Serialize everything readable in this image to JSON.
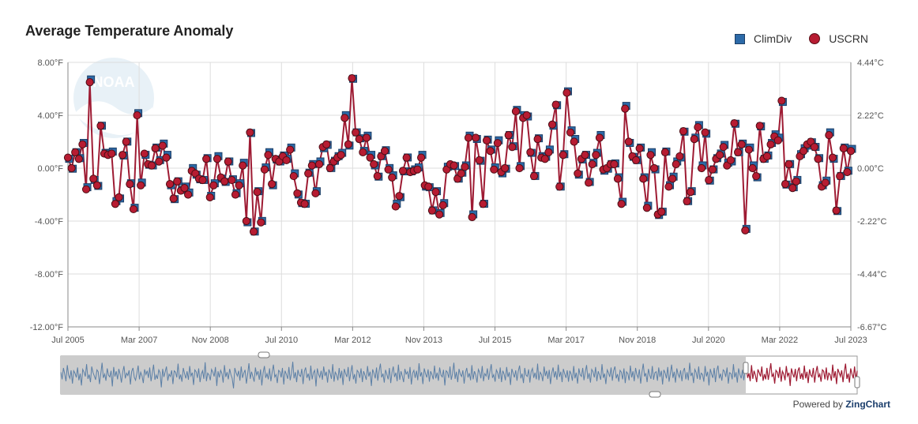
{
  "title": "Average Temperature Anomaly",
  "legend": {
    "climdiv": "ClimDiv",
    "uscrn": "USCRN"
  },
  "colors": {
    "climdiv": "#2c6aa8",
    "uscrn": "#b71c32",
    "line": "#9e1b33",
    "preview": "#5b7fa6"
  },
  "powered": {
    "prefix": "Powered by",
    "brand": "ZingChart"
  },
  "watermark": "NOAA",
  "chart_data": {
    "type": "line",
    "title": "Average Temperature Anomaly",
    "x_start": "2005-07",
    "x_end": "2023-07",
    "x_ticks": [
      "Jul 2005",
      "Mar 2007",
      "Nov 2008",
      "Jul 2010",
      "Mar 2012",
      "Nov 2013",
      "Jul 2015",
      "Mar 2017",
      "Nov 2018",
      "Jul 2020",
      "Mar 2022",
      "Jul 2023"
    ],
    "y_left_ticks": [
      "8.00°F",
      "4.00°F",
      "0.00°F",
      "-4.00°F",
      "-8.00°F",
      "-12.00°F"
    ],
    "y_right_ticks": [
      "4.44°C",
      "2.22°C",
      "0.00°C",
      "-2.22°C",
      "-4.44°C",
      "-6.67°C"
    ],
    "ylim": [
      -12,
      8
    ],
    "grid": true,
    "legend_position": "top-right",
    "series": [
      {
        "name": "ClimDiv",
        "marker": "square"
      },
      {
        "name": "USCRN",
        "marker": "circle"
      }
    ],
    "uscrn": [
      0.8,
      0.0,
      1.2,
      0.7,
      1.8,
      -1.6,
      6.5,
      -0.8,
      -1.3,
      3.2,
      1.1,
      1.0,
      1.1,
      -2.7,
      -2.2,
      1.0,
      2.0,
      -1.2,
      -3.1,
      4.0,
      -1.3,
      1.1,
      0.3,
      0.2,
      1.5,
      0.5,
      1.7,
      0.8,
      -1.2,
      -2.3,
      -1.0,
      -1.7,
      -1.5,
      -2.0,
      -0.2,
      -0.4,
      -0.8,
      -0.9,
      0.7,
      -2.2,
      -1.3,
      0.7,
      -0.7,
      -1.0,
      0.5,
      -0.9,
      -2.0,
      -1.3,
      0.2,
      -4.0,
      2.7,
      -4.8,
      -1.8,
      -4.1,
      -0.1,
      1.0,
      -1.2,
      0.7,
      0.5,
      0.9,
      0.6,
      1.4,
      -0.6,
      -1.9,
      -2.6,
      -2.7,
      -0.4,
      0.2,
      -1.9,
      0.3,
      1.6,
      1.8,
      0.0,
      0.5,
      0.8,
      1.0,
      3.8,
      1.8,
      6.8,
      2.7,
      2.2,
      1.2,
      2.3,
      0.8,
      0.3,
      -0.6,
      0.9,
      1.3,
      -0.1,
      -0.7,
      -2.9,
      -2.1,
      -0.2,
      0.8,
      -0.3,
      -0.2,
      -0.1,
      0.8,
      -1.3,
      -1.4,
      -3.2,
      -1.8,
      -3.5,
      -2.8,
      -0.1,
      0.3,
      0.2,
      -0.8,
      -0.4,
      0.1,
      2.3,
      -3.7,
      2.3,
      0.6,
      -2.7,
      2.1,
      1.3,
      -0.1,
      1.9,
      -0.3,
      0.0,
      2.5,
      1.6,
      4.3,
      0.0,
      3.8,
      4.0,
      1.2,
      -0.6,
      2.2,
      0.8,
      0.7,
      1.2,
      3.3,
      4.8,
      -1.4,
      1.0,
      5.7,
      2.7,
      2.0,
      -0.4,
      0.7,
      1.0,
      -1.1,
      0.3,
      1.0,
      2.3,
      -0.1,
      0.0,
      0.3,
      0.3,
      -0.8,
      -2.7,
      4.5,
      2.0,
      0.9,
      0.6,
      1.5,
      -0.8,
      -3.0,
      1.0,
      0.0,
      -3.5,
      -3.3,
      1.2,
      -1.4,
      -0.8,
      0.3,
      0.9,
      2.8,
      -2.5,
      -1.8,
      2.2,
      3.1,
      0.0,
      2.7,
      -0.9,
      -0.1,
      0.7,
      1.0,
      1.6,
      0.2,
      0.6,
      3.4,
      1.2,
      1.8,
      -4.7,
      1.4,
      0.0,
      -0.6,
      3.2,
      0.7,
      0.9,
      1.8,
      2.4,
      2.1,
      5.1,
      -1.2,
      0.3,
      -1.5,
      -1.0,
      0.9,
      1.3,
      1.8,
      2.0,
      1.6,
      0.7,
      -1.4,
      -1.1,
      2.5,
      0.8,
      -3.2,
      -0.6,
      1.5,
      -0.3,
      1.3
    ]
  },
  "preview": {
    "values": [
      0.6,
      -0.9,
      1.5,
      0.2,
      -1.3,
      2.1,
      0.0,
      -0.7,
      1.0,
      -1.8,
      0.9,
      0.4,
      -0.5,
      1.6,
      -1.1,
      0.3,
      -2.2,
      1.2,
      0.6,
      -0.3,
      2.3,
      -0.8,
      0.1,
      -1.5,
      1.8,
      0.5,
      -0.2,
      -1.0,
      1.1,
      0.7,
      -1.9,
      0.3,
      2.6,
      -0.6,
      0.2,
      -1.2,
      1.4,
      0.0,
      -0.4,
      0.9,
      -2.4,
      1.7,
      -0.3,
      0.8,
      -0.9,
      1.3,
      0.2,
      -1.6,
      0.6,
      1.9,
      -0.7,
      0.4,
      -0.1,
      1.0,
      -2.0,
      0.8,
      1.5,
      -0.5,
      -1.1,
      0.3,
      2.0,
      -0.9,
      0.6,
      -0.2,
      -1.7,
      1.2,
      0.1,
      0.9,
      -0.6,
      1.6,
      -1.3,
      0.4,
      2.2,
      -1.0,
      0.0,
      -0.8,
      1.1,
      0.5,
      -2.6,
      1.3,
      -0.4,
      0.7,
      1.8,
      -1.2,
      0.2,
      -0.3,
      1.0,
      -1.9,
      0.9,
      0.6,
      -0.5,
      2.4,
      -0.9,
      0.1,
      -1.4,
      1.5,
      0.3,
      -0.7,
      0.8,
      -1.0,
      1.9,
      -0.2,
      0.5,
      -2.1,
      1.1,
      0.7,
      -0.6,
      1.4,
      -1.5,
      0.2,
      0.9,
      -0.8,
      2.7,
      -1.3,
      0.4,
      0.0,
      -1.1,
      1.2,
      0.6,
      -0.3,
      1.7,
      -2.3,
      0.8,
      -0.5,
      1.0,
      0.3,
      -1.6,
      2.1,
      -0.4,
      0.6,
      -0.9,
      1.3,
      0.1,
      -0.7,
      -2.8,
      1.5,
      0.5,
      -0.2,
      0.9,
      -1.2,
      1.8,
      -0.6,
      0.4,
      1.1,
      -1.8,
      0.2,
      2.5,
      -0.8,
      0.7,
      -0.3,
      -1.4,
      1.6,
      0.0,
      0.8,
      -1.0,
      1.2,
      -2.2,
      0.5,
      1.9,
      -0.6,
      0.3,
      -0.9,
      1.4,
      -1.3,
      0.6,
      2.2,
      -0.4,
      0.1,
      -1.7,
      1.0,
      0.7,
      -0.5,
      1.5,
      -2.0,
      0.9,
      0.2,
      -0.8,
      1.7,
      -1.1,
      0.4,
      2.8,
      -0.7,
      0.6,
      -1.5,
      1.1,
      0.0,
      -0.3,
      1.3,
      -1.9,
      0.8,
      1.6,
      -0.6,
      0.3,
      -1.2,
      2.0,
      -0.9,
      0.5,
      1.0,
      -2.4,
      1.4,
      0.2,
      -0.5,
      0.9,
      -1.0,
      1.8,
      -0.2,
      0.7,
      -1.6,
      1.2,
      0.4,
      -0.8,
      2.3,
      -1.4,
      0.6,
      0.1,
      -1.1,
      1.5,
      -0.7,
      0.9,
      -2.1,
      1.3,
      0.3,
      -0.4,
      1.7,
      -1.3,
      0.5,
      2.1,
      -0.9,
      0.2,
      -1.8,
      1.0,
      0.6,
      -0.6,
      1.4,
      -1.5,
      0.8,
      0.0,
      -1.0,
      1.9,
      -0.3,
      0.7,
      -2.3,
      1.2,
      0.4,
      -0.7,
      1.6,
      -1.2,
      0.9,
      2.4,
      -0.5,
      0.3,
      -1.6,
      1.1,
      0.1,
      -0.9,
      1.5,
      -1.7,
      0.6,
      1.8,
      -0.4,
      0.5,
      -1.3,
      2.2,
      -1.0,
      0.8,
      -0.2,
      -1.5,
      1.3,
      0.2,
      0.7,
      -0.8,
      1.7,
      -2.0,
      0.4,
      1.0,
      -0.6,
      0.9,
      -1.1,
      2.5,
      -0.3,
      0.6,
      -1.9,
      1.4,
      0.3,
      -0.5,
      1.2,
      -1.4,
      0.8,
      0.1,
      -0.9,
      2.0,
      -0.7,
      0.5,
      -1.2,
      1.6,
      0.0,
      -0.4,
      1.1,
      -2.2,
      0.9,
      0.6,
      -0.6,
      1.8,
      -1.0,
      0.3,
      2.6,
      -0.8,
      0.7,
      -1.5,
      1.3,
      0.2,
      -0.3,
      1.0,
      -1.8,
      0.5,
      1.5,
      -0.5,
      0.4,
      -1.1,
      2.1,
      -0.9,
      0.8,
      0.0,
      -1.6,
      1.2,
      0.6,
      -0.7,
      1.9,
      -1.3,
      0.3,
      -0.2,
      1.4,
      -1.0,
      0.7,
      2.3,
      -0.6,
      0.1,
      -1.4,
      1.1,
      0.5,
      -0.8,
      1.6,
      -1.5,
      0.9,
      0.2,
      -1.1,
      1.7,
      -0.4,
      0.6,
      -2.1,
      1.3,
      0.4,
      -0.5,
      1.0,
      -1.2,
      0.8,
      2.0,
      -0.7,
      0.3,
      -1.7,
      1.5,
      0.0,
      -0.3,
      1.2,
      -1.6,
      0.7,
      1.4,
      -0.6,
      0.5,
      -0.9,
      2.4,
      -1.1,
      0.6,
      0.1,
      -1.3,
      1.8,
      -0.2,
      0.9,
      -0.8,
      1.1,
      -1.9,
      0.4,
      1.6,
      -0.5,
      0.8,
      -1.0,
      2.2,
      -0.4,
      0.7,
      -1.5,
      1.3,
      0.3,
      -0.6,
      1.0,
      -1.4,
      0.9,
      0.2,
      -1.2,
      1.9,
      -0.7,
      0.5,
      -1.8,
      1.4,
      0.1,
      -0.3,
      1.5,
      -1.1,
      0.6,
      2.1,
      -0.8,
      0.4,
      -1.6,
      1.2,
      0.7,
      -0.5,
      1.7,
      -1.3,
      0.8,
      0.0,
      -1.0,
      2.3,
      -0.6,
      0.3,
      -1.9,
      1.1,
      0.5,
      -0.4,
      1.6,
      -1.2,
      0.9,
      1.8,
      -0.7,
      0.2,
      -1.4,
      1.0,
      0.6,
      -0.9,
      1.4,
      -1.7,
      0.7,
      0.3,
      -1.1,
      2.0,
      -0.5,
      0.8,
      -1.3,
      1.5,
      0.1,
      -0.6,
      1.2,
      -1.8,
      0.6,
      2.4,
      -0.3,
      0.4,
      -1.5,
      1.3,
      0.0,
      -0.8,
      1.9,
      -1.0,
      0.5,
      0.7,
      -1.2,
      1.6,
      -0.4,
      0.9,
      -2.0,
      1.1,
      0.4,
      -0.7,
      1.7,
      -1.4,
      0.3,
      2.2,
      -0.6,
      0.7,
      -1.6,
      1.4,
      0.2,
      -0.5,
      1.0,
      -1.3,
      0.8,
      1.5,
      -0.9,
      0.6,
      -1.1,
      2.6,
      -0.2,
      0.5,
      -1.7,
      1.2,
      0.6,
      -0.8,
      1.8,
      -1.0,
      0.4,
      0.1,
      -1.4,
      1.9,
      -0.3,
      0.7,
      -2.2,
      1.3,
      0.2,
      -0.6,
      1.5,
      -1.5,
      0.9,
      2.0,
      -0.7,
      0.3,
      -1.2,
      1.1,
      0.8,
      -0.4,
      1.6,
      -1.8,
      0.5,
      0.3,
      -0.9,
      2.3,
      -0.5,
      0.6,
      -1.6,
      1.4,
      0.1,
      -0.7,
      1.1,
      -1.1,
      0.8,
      1.7,
      -0.6,
      0.4,
      -1.3,
      2.1,
      -0.8,
      0.9,
      0.0,
      -1.5,
      1.2,
      0.5,
      -0.3,
      1.8,
      -1.2,
      0.2,
      -0.9,
      1.5,
      -1.0,
      0.7,
      2.5,
      -0.4,
      0.3,
      -1.8,
      1.0,
      0.6,
      -0.6,
      1.7,
      -1.4,
      0.8,
      0.2,
      -1.1,
      1.9,
      -0.2,
      0.5,
      -2.3,
      1.4,
      0.3,
      -0.5,
      1.3,
      -1.3,
      0.9,
      1.6,
      -0.8,
      0.4,
      -1.0,
      2.0,
      -0.7,
      0.7,
      -1.7,
      1.2,
      0.0,
      -0.4,
      1.5,
      -1.6,
      0.6,
      1.9,
      -0.5,
      0.2,
      -1.4,
      1.1,
      0.8,
      -0.9,
      1.6,
      -1.1,
      0.4,
      0.1,
      -1.2,
      2.2,
      -0.6,
      0.8,
      -1.9,
      1.3,
      0.5,
      -0.3,
      1.0,
      -1.5,
      0.7,
      2.4,
      -0.8,
      0.3,
      -1.6,
      1.4,
      0.2,
      -0.7,
      1.8,
      -1.0,
      0.9
    ]
  }
}
